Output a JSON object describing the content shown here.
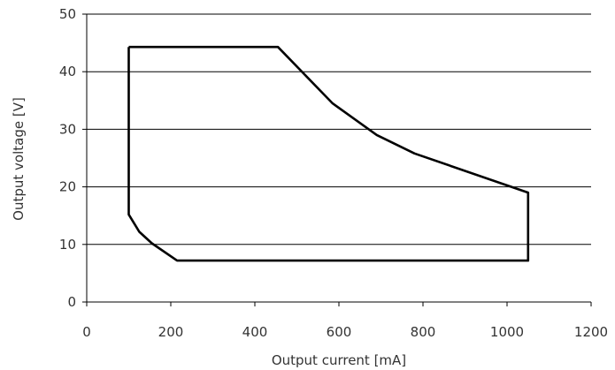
{
  "chart_data": {
    "type": "line",
    "title": "",
    "xlabel": "Output current [mA]",
    "ylabel": "Output voltage [V]",
    "xlim": [
      0,
      1200
    ],
    "ylim": [
      0,
      50
    ],
    "x_ticks": [
      0,
      200,
      400,
      600,
      800,
      1000,
      1200
    ],
    "y_ticks": [
      0,
      10,
      20,
      30,
      40,
      50
    ],
    "grid": "horizontal",
    "legend": "none",
    "series": [
      {
        "x": [
          100,
          455,
          585,
          690,
          780,
          1050,
          1050,
          215,
          155,
          125,
          100,
          100
        ],
        "y": [
          44.3,
          44.3,
          34.5,
          29.0,
          25.8,
          19.0,
          7.2,
          7.2,
          10.2,
          12.2,
          15.2,
          44.3
        ]
      }
    ],
    "colors": {
      "line": "#000000",
      "grid": "#000000",
      "axis": "#000000",
      "text": "#333333"
    }
  }
}
